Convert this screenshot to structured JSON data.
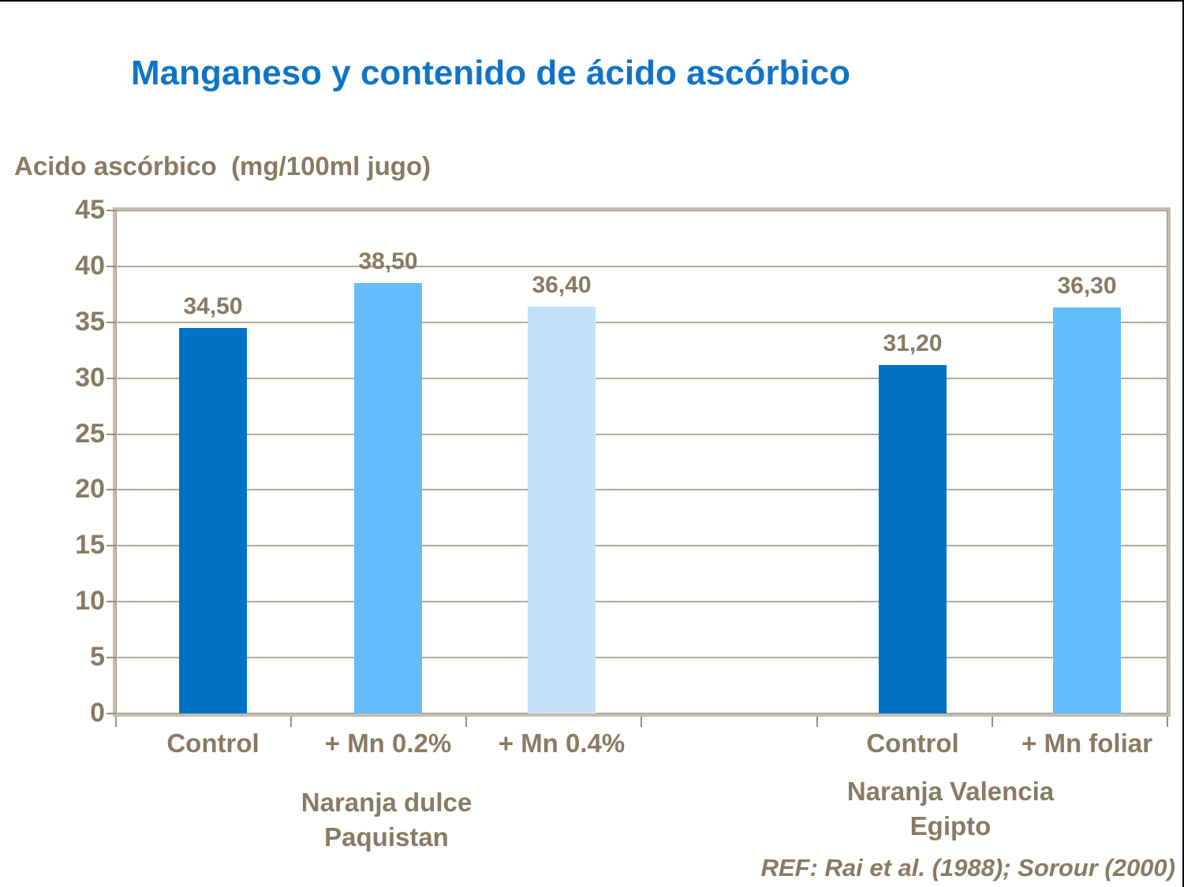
{
  "title": "Manganeso y contenido de ácido ascórbico",
  "colors": {
    "title_blue": "#0F74C6",
    "text_taupe": "#8A7A64",
    "gridline": "#B3A99B",
    "frame_light": "#C6BCAE",
    "frame_dark": "#9A8E7E",
    "bar_dark_blue": "#0071C5",
    "bar_sky_blue": "#63BCFB",
    "bar_pale_blue": "#C5E1FA",
    "edge_line": "#000000"
  },
  "chart_data": {
    "type": "bar",
    "title": "Manganeso y contenido de ácido ascórbico",
    "ylabel": "Acido ascórbico  (mg/100ml jugo)",
    "xlabel": "",
    "ylim": [
      0,
      45
    ],
    "yticks": [
      0,
      5,
      10,
      15,
      20,
      25,
      30,
      35,
      40,
      45
    ],
    "grid": "horizontal",
    "legend": "none",
    "categories": [
      "Control",
      "+ Mn 0.2%",
      "+ Mn 0.4%",
      "Control",
      "+ Mn foliar"
    ],
    "values": [
      34.5,
      38.5,
      36.4,
      31.2,
      36.3
    ],
    "value_labels": [
      "34,50",
      "38,50",
      "36,40",
      "31,20",
      "36,30"
    ],
    "bar_colors": [
      "#0071C5",
      "#63BCFB",
      "#C5E1FA",
      "#0071C5",
      "#63BCFB"
    ],
    "groups": [
      {
        "line1": "Naranja dulce",
        "line2": "Paquistan"
      },
      {
        "line1": "Naranja Valencia",
        "line2": "Egipto"
      }
    ],
    "reference": "REF: Rai et al. (1988); Sorour (2000)"
  }
}
